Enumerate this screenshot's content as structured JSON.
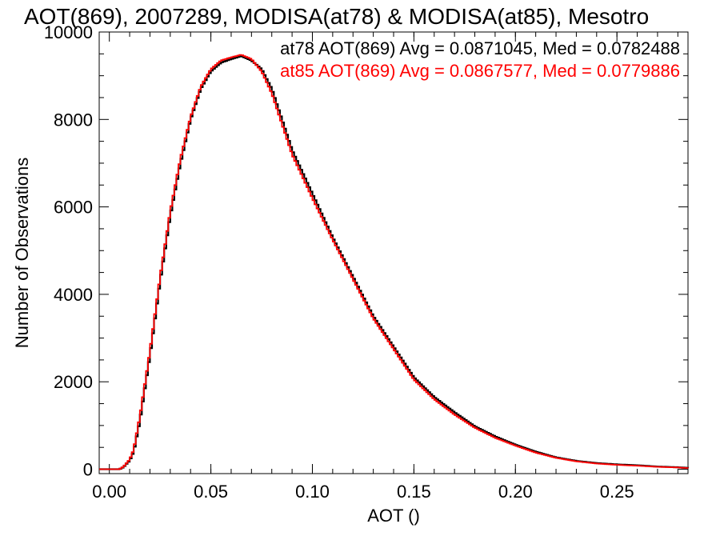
{
  "chart_data": {
    "type": "line",
    "title": "AOT(869), 2007289, MODISA(at78) & MODISA(at85), Mesotro",
    "xlabel": "AOT ()",
    "ylabel": "Number of Observations",
    "xlim": [
      -0.005,
      0.285
    ],
    "ylim": [
      -100,
      10000
    ],
    "x_ticks": [
      0.0,
      0.05,
      0.1,
      0.15,
      0.2,
      0.25
    ],
    "x_tick_labels": [
      "0.00",
      "0.05",
      "0.10",
      "0.15",
      "0.20",
      "0.25"
    ],
    "y_ticks": [
      0,
      2000,
      4000,
      6000,
      8000,
      10000
    ],
    "y_tick_labels": [
      "0",
      "2000",
      "4000",
      "6000",
      "8000",
      "10000"
    ],
    "grid": false,
    "legend_placement": "top-right",
    "annotations": [
      {
        "text": "at78 AOT(869) Avg = 0.0871045, Med = 0.0782488",
        "color": "#000000"
      },
      {
        "text": "at85 AOT(869) Avg = 0.0867577, Med = 0.0779886",
        "color": "#ff0000"
      }
    ],
    "series": [
      {
        "name": "at78",
        "color": "#000000",
        "x": [
          -0.005,
          0.0,
          0.005,
          0.007,
          0.01,
          0.012,
          0.015,
          0.02,
          0.025,
          0.03,
          0.035,
          0.04,
          0.045,
          0.05,
          0.055,
          0.06,
          0.065,
          0.07,
          0.075,
          0.08,
          0.085,
          0.09,
          0.1,
          0.11,
          0.12,
          0.13,
          0.14,
          0.15,
          0.16,
          0.17,
          0.18,
          0.19,
          0.2,
          0.21,
          0.22,
          0.23,
          0.24,
          0.25,
          0.26,
          0.27,
          0.28,
          0.285
        ],
        "values": [
          0,
          0,
          0,
          50,
          200,
          400,
          1100,
          2600,
          4300,
          5800,
          7000,
          8000,
          8700,
          9100,
          9300,
          9380,
          9450,
          9350,
          9150,
          8700,
          8000,
          7300,
          6300,
          5300,
          4400,
          3500,
          2800,
          2100,
          1650,
          1300,
          980,
          750,
          560,
          400,
          270,
          190,
          140,
          110,
          90,
          60,
          45,
          30
        ]
      },
      {
        "name": "at85",
        "color": "#ff0000",
        "x": [
          -0.005,
          0.0,
          0.005,
          0.007,
          0.01,
          0.012,
          0.015,
          0.02,
          0.025,
          0.03,
          0.035,
          0.04,
          0.045,
          0.05,
          0.055,
          0.06,
          0.065,
          0.07,
          0.075,
          0.08,
          0.085,
          0.09,
          0.1,
          0.11,
          0.12,
          0.13,
          0.14,
          0.15,
          0.16,
          0.17,
          0.18,
          0.19,
          0.2,
          0.21,
          0.22,
          0.23,
          0.24,
          0.25,
          0.26,
          0.27,
          0.28,
          0.285
        ],
        "values": [
          0,
          0,
          0,
          60,
          220,
          450,
          1200,
          2700,
          4400,
          5900,
          7100,
          8050,
          8750,
          9150,
          9350,
          9420,
          9480,
          9380,
          9100,
          8600,
          7900,
          7200,
          6200,
          5250,
          4350,
          3450,
          2750,
          2050,
          1600,
          1250,
          950,
          720,
          540,
          380,
          260,
          180,
          130,
          100,
          80,
          55,
          40,
          25
        ]
      }
    ]
  }
}
